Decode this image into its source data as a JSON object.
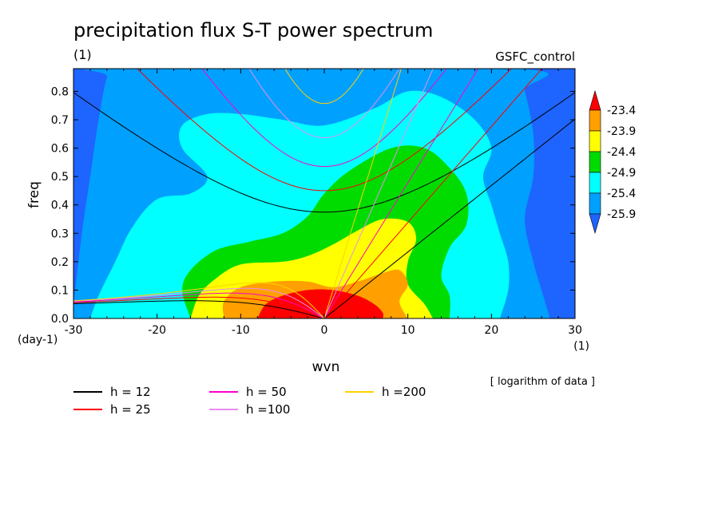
{
  "chart_data": {
    "type": "heatmap",
    "title": "precipitation flux S-T power spectrum",
    "units": "(1)",
    "dataset": "GSFC_control",
    "xlabel": "wvn",
    "ylabel": "freq",
    "x_units": "(1)",
    "y_units": "(day-1)",
    "xlim": [
      -30,
      30
    ],
    "ylim": [
      0,
      0.88
    ],
    "x_ticks": [
      -30,
      -20,
      -10,
      0,
      10,
      20,
      30
    ],
    "y_ticks": [
      0.0,
      0.1,
      0.2,
      0.3,
      0.4,
      0.5,
      0.6,
      0.7,
      0.8
    ],
    "y_tick_labels": [
      "0.0",
      "0.1",
      "0.2",
      "0.3",
      "0.4",
      "0.5",
      "0.6",
      "0.7",
      "0.8"
    ],
    "x_tick_labels": [
      "-30",
      "-20",
      "-10",
      "0",
      "10",
      "20",
      "30"
    ],
    "note": "[ logarithm of data ]",
    "colorbar": {
      "levels": [
        -25.9,
        -25.4,
        -24.9,
        -24.4,
        -23.9,
        -23.4
      ],
      "labels": [
        "-25.9",
        "-25.4",
        "-24.9",
        "-24.4",
        "-23.9",
        "-23.4"
      ],
      "colors": [
        "#1e64ff",
        "#00a0ff",
        "#00ffff",
        "#00dc00",
        "#ffff00",
        "#ffa000",
        "#ff0000"
      ]
    },
    "contour_fill_regions": [
      {
        "level_index": 0,
        "color": "#00a0ff",
        "points": [
          [
            -30,
            0
          ],
          [
            -30,
            0.04
          ],
          [
            -29,
            0.3
          ],
          [
            -28,
            0.5
          ],
          [
            -27,
            0.7
          ],
          [
            -26,
            0.85
          ],
          [
            -25,
            0.88
          ],
          [
            23,
            0.88
          ],
          [
            24,
            0.8
          ],
          [
            25,
            0.65
          ],
          [
            25,
            0.5
          ],
          [
            24,
            0.35
          ],
          [
            25,
            0.2
          ],
          [
            26,
            0.1
          ],
          [
            27,
            0
          ]
        ]
      },
      {
        "level_index": 1,
        "color": "#00ffff",
        "points": [
          [
            -28,
            0
          ],
          [
            -27,
            0.08
          ],
          [
            -25,
            0.2
          ],
          [
            -23,
            0.32
          ],
          [
            -20,
            0.42
          ],
          [
            -16,
            0.44
          ],
          [
            -14,
            0.5
          ],
          [
            -17,
            0.6
          ],
          [
            -17,
            0.68
          ],
          [
            -14,
            0.72
          ],
          [
            -10,
            0.72
          ],
          [
            -5,
            0.7
          ],
          [
            0,
            0.68
          ],
          [
            6,
            0.74
          ],
          [
            10,
            0.8
          ],
          [
            14,
            0.78
          ],
          [
            18,
            0.7
          ],
          [
            20,
            0.6
          ],
          [
            19,
            0.5
          ],
          [
            20,
            0.4
          ],
          [
            21,
            0.3
          ],
          [
            22,
            0.2
          ],
          [
            22,
            0.1
          ],
          [
            21,
            0
          ]
        ]
      },
      {
        "level_index": 2,
        "color": "#00dc00",
        "points": [
          [
            -16,
            0
          ],
          [
            -17,
            0.1
          ],
          [
            -16,
            0.17
          ],
          [
            -13,
            0.24
          ],
          [
            -9,
            0.27
          ],
          [
            -5,
            0.3
          ],
          [
            -2,
            0.36
          ],
          [
            0,
            0.44
          ],
          [
            3,
            0.52
          ],
          [
            8,
            0.6
          ],
          [
            12,
            0.6
          ],
          [
            15,
            0.53
          ],
          [
            17,
            0.44
          ],
          [
            17,
            0.33
          ],
          [
            15,
            0.25
          ],
          [
            14,
            0.15
          ],
          [
            15,
            0.08
          ],
          [
            15,
            0
          ]
        ]
      },
      {
        "level_index": 3,
        "color": "#ffff00",
        "points": [
          [
            -16,
            0
          ],
          [
            -15,
            0.08
          ],
          [
            -13,
            0.14
          ],
          [
            -10,
            0.19
          ],
          [
            -5,
            0.2
          ],
          [
            -2,
            0.22
          ],
          [
            1,
            0.26
          ],
          [
            4,
            0.31
          ],
          [
            7,
            0.35
          ],
          [
            10,
            0.34
          ],
          [
            11,
            0.28
          ],
          [
            10,
            0.2
          ],
          [
            10,
            0.12
          ],
          [
            12,
            0.05
          ],
          [
            13,
            0
          ]
        ]
      },
      {
        "level_index": 4,
        "color": "#ffa000",
        "points": [
          [
            -12,
            0
          ],
          [
            -12,
            0.06
          ],
          [
            -10,
            0.11
          ],
          [
            -6,
            0.13
          ],
          [
            -2,
            0.13
          ],
          [
            1,
            0.11
          ],
          [
            4,
            0.13
          ],
          [
            7,
            0.16
          ],
          [
            9,
            0.17
          ],
          [
            10,
            0.12
          ],
          [
            9,
            0.06
          ],
          [
            10,
            0
          ]
        ]
      },
      {
        "level_index": 5,
        "color": "#ff0000",
        "points": [
          [
            -8,
            0
          ],
          [
            -7,
            0.05
          ],
          [
            -5,
            0.08
          ],
          [
            -2,
            0.1
          ],
          [
            1,
            0.1
          ],
          [
            4,
            0.08
          ],
          [
            6,
            0.05
          ],
          [
            7,
            0.02
          ],
          [
            7,
            0
          ]
        ]
      }
    ],
    "series": [
      {
        "name": "h = 12",
        "color": "#000000",
        "h": 12
      },
      {
        "name": "h = 25",
        "color": "#ff0000",
        "h": 25
      },
      {
        "name": "h = 50",
        "color": "#ff00c8",
        "h": 50
      },
      {
        "name": "h =100",
        "color": "#e88cf0",
        "h": 100
      },
      {
        "name": "h =200",
        "color": "#ffd200",
        "h": 200
      }
    ]
  }
}
